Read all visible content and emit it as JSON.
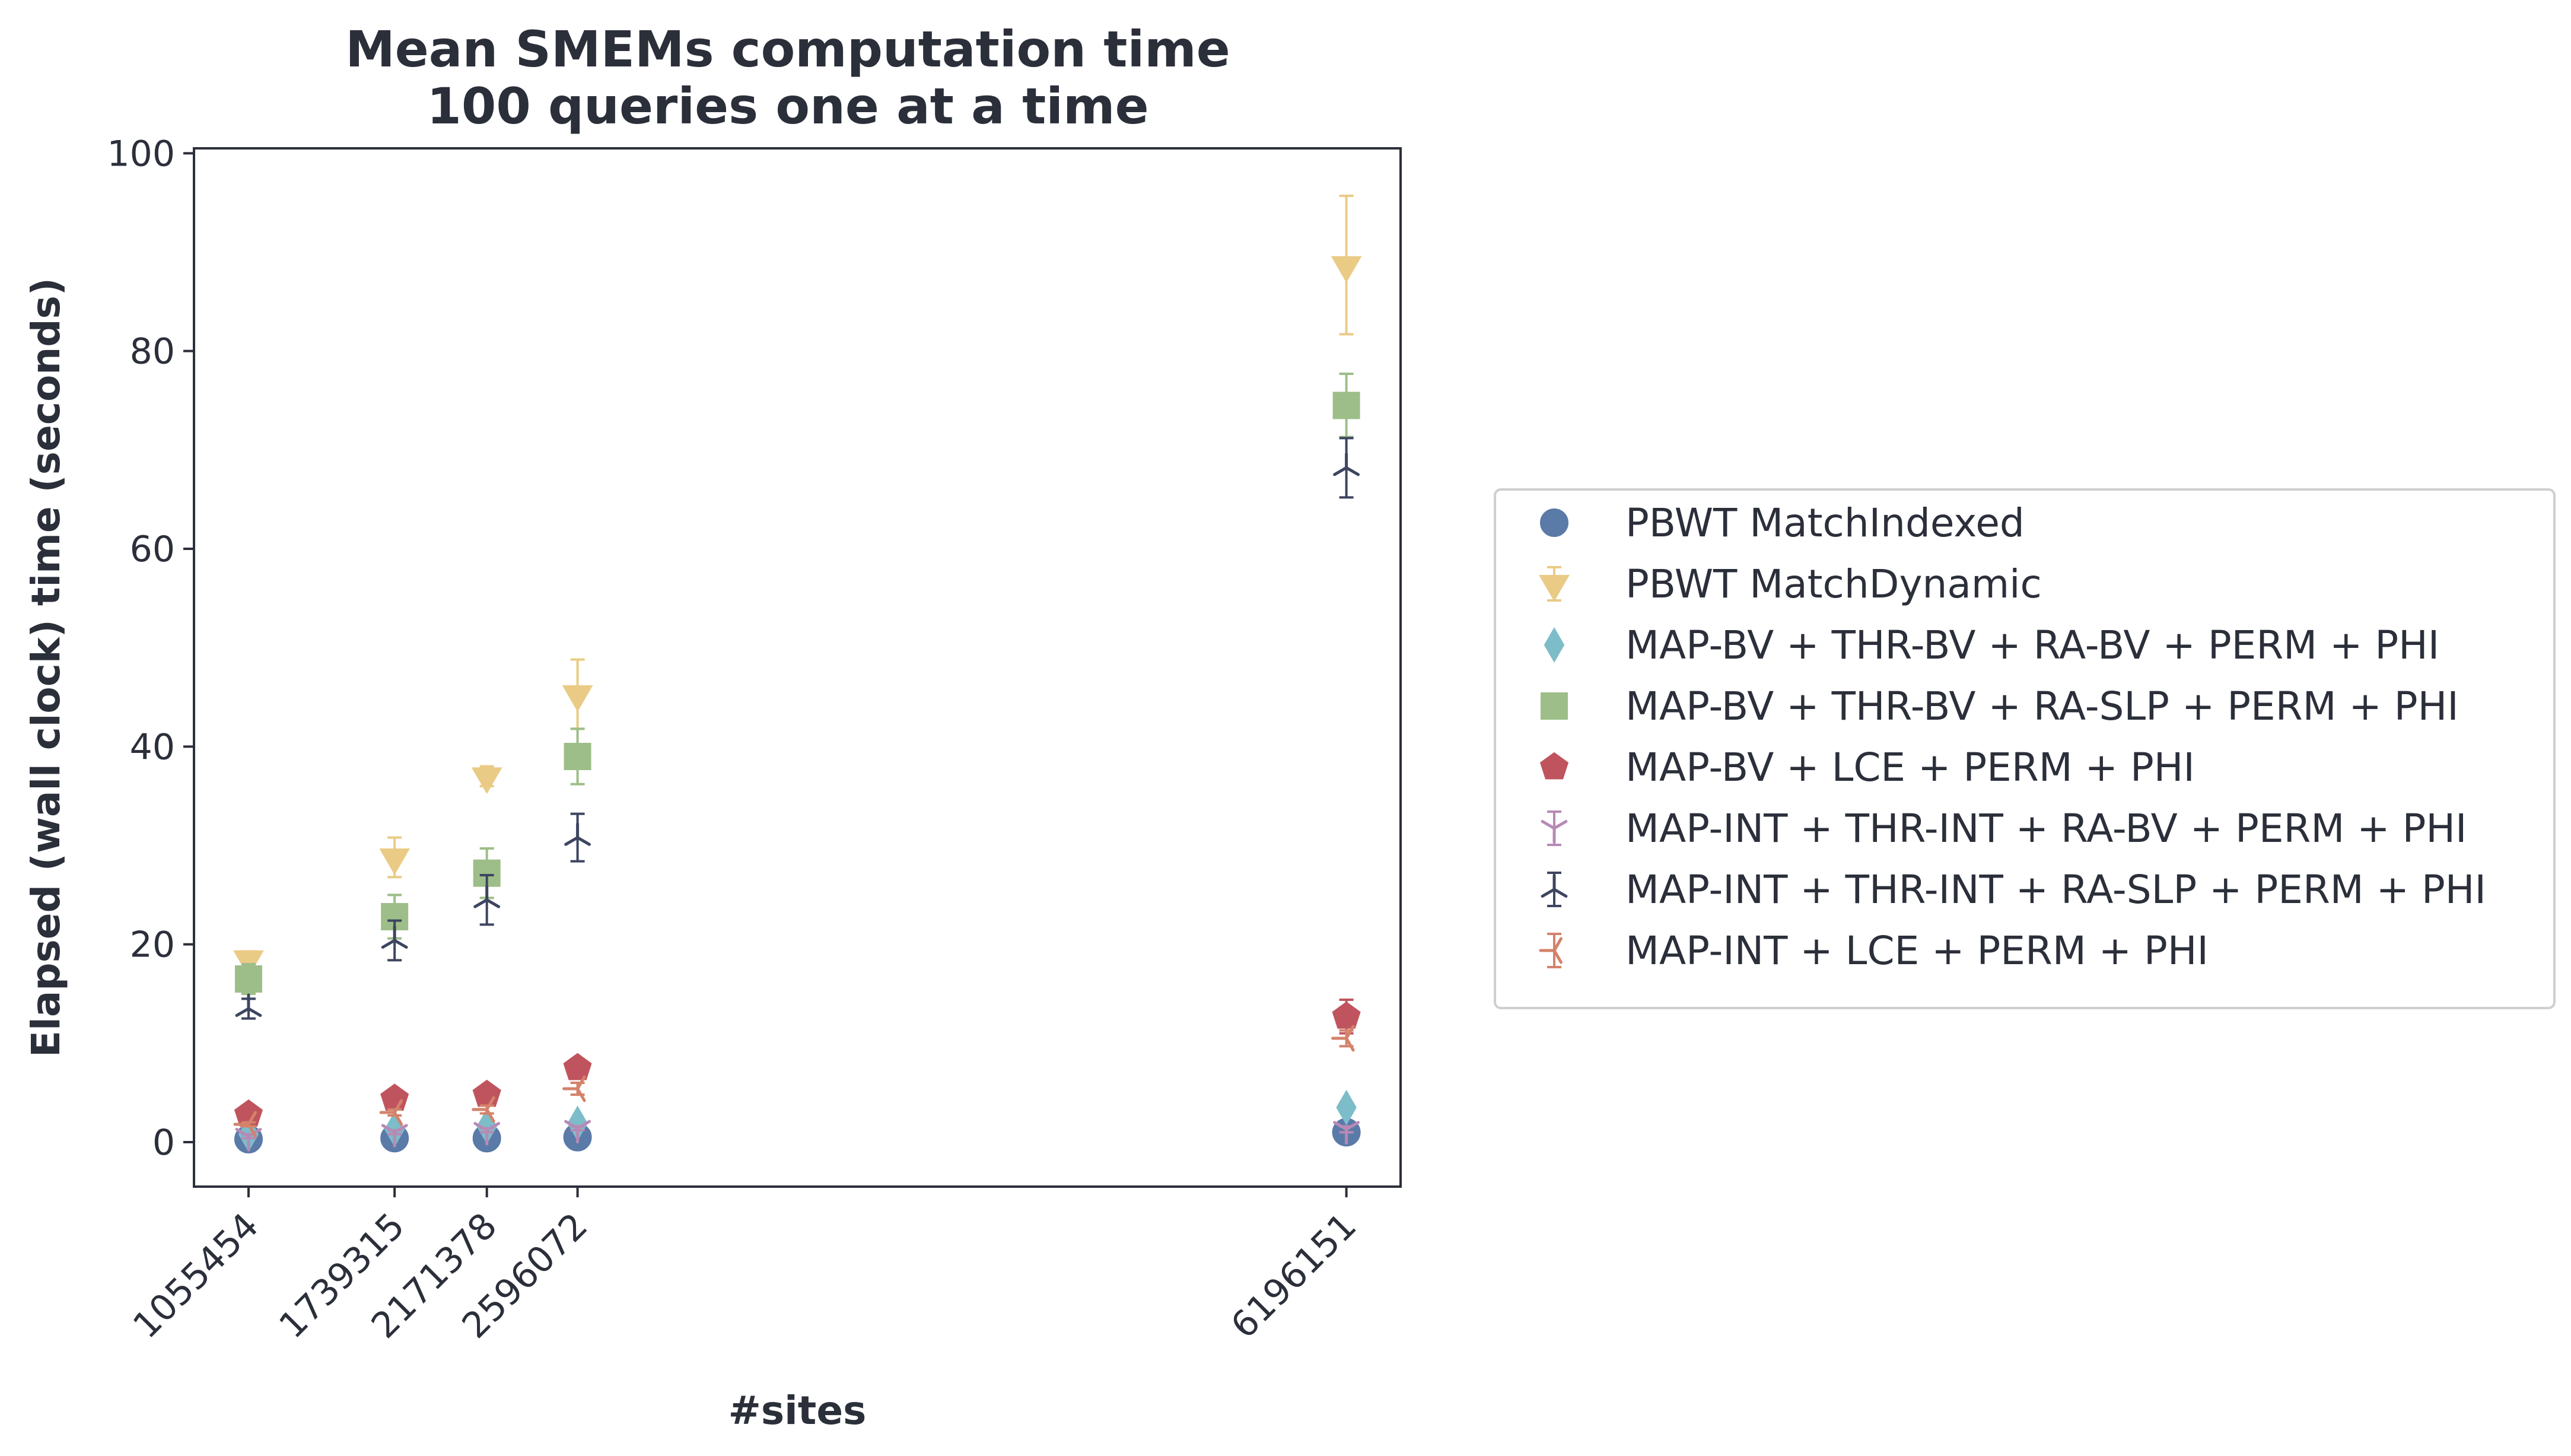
{
  "chart_data": {
    "type": "scatter",
    "title": [
      "Mean SMEMs computation time",
      "100 queries one at a time"
    ],
    "xlabel": "#sites",
    "ylabel": "Elapsed (wall clock) time (seconds)",
    "x": [
      1055454,
      1739315,
      2171378,
      2596072,
      6196151
    ],
    "x_tick_labels": [
      "1055454",
      "1739315",
      "2171378",
      "2596072",
      "6196151"
    ],
    "xlim": [
      800000,
      6450000
    ],
    "ylim": [
      -4.5,
      100.5
    ],
    "y_ticks": [
      0,
      20,
      40,
      60,
      80,
      100
    ],
    "y_tick_labels": [
      "0",
      "20",
      "40",
      "60",
      "80",
      "100"
    ],
    "grid": false,
    "legend_position": "outside-right",
    "series": [
      {
        "name": "PBWT MatchIndexed",
        "marker": "circle",
        "color": "#5a7aa8",
        "values": [
          0.3,
          0.4,
          0.4,
          0.5,
          1.0
        ],
        "err": [
          0.1,
          0.1,
          0.1,
          0.1,
          0.2
        ]
      },
      {
        "name": "PBWT MatchDynamic",
        "marker": "triangle-down",
        "color": "#eacb86",
        "values": [
          18.5,
          28.8,
          37.0,
          45.3,
          88.7
        ],
        "err": [
          0.8,
          2.0,
          1.0,
          3.5,
          7.0
        ]
      },
      {
        "name": "MAP-BV + THR-BV + RA-BV + PERM + PHI",
        "marker": "diamond",
        "color": "#7dbcc9",
        "values": [
          0.8,
          1.3,
          1.6,
          1.9,
          3.5
        ],
        "err": [
          0.1,
          0.2,
          0.2,
          0.2,
          0.5
        ]
      },
      {
        "name": "MAP-BV + THR-BV + RA-SLP + PERM + PHI",
        "marker": "square",
        "color": "#9dbe88",
        "values": [
          16.5,
          22.8,
          27.2,
          39.0,
          74.5
        ],
        "err": [
          1.5,
          2.2,
          2.5,
          2.8,
          3.2
        ]
      },
      {
        "name": "MAP-BV + LCE + PERM + PHI",
        "marker": "pentagon",
        "color": "#c0545e",
        "values": [
          2.8,
          4.4,
          4.8,
          7.5,
          12.7
        ],
        "err": [
          0.2,
          0.3,
          0.3,
          0.4,
          1.7
        ]
      },
      {
        "name": "MAP-INT + THR-INT + RA-BV + PERM + PHI",
        "marker": "tri-down",
        "color": "#b78ab5",
        "values": [
          0.6,
          1.0,
          1.2,
          1.4,
          1.3
        ],
        "err": [
          0.2,
          0.2,
          0.2,
          0.2,
          0.3
        ]
      },
      {
        "name": "MAP-INT + THR-INT + RA-SLP + PERM + PHI",
        "marker": "tri-up",
        "color": "#3d4560",
        "values": [
          13.5,
          20.4,
          24.5,
          30.8,
          68.2
        ],
        "err": [
          1.0,
          2.0,
          2.5,
          2.4,
          3.0
        ]
      },
      {
        "name": "MAP-INT + LCE + PERM + PHI",
        "marker": "tri-left",
        "color": "#d4826a",
        "values": [
          1.8,
          3.0,
          3.3,
          5.4,
          10.5
        ],
        "err": [
          0.2,
          0.3,
          0.4,
          0.6,
          0.8
        ]
      }
    ]
  }
}
